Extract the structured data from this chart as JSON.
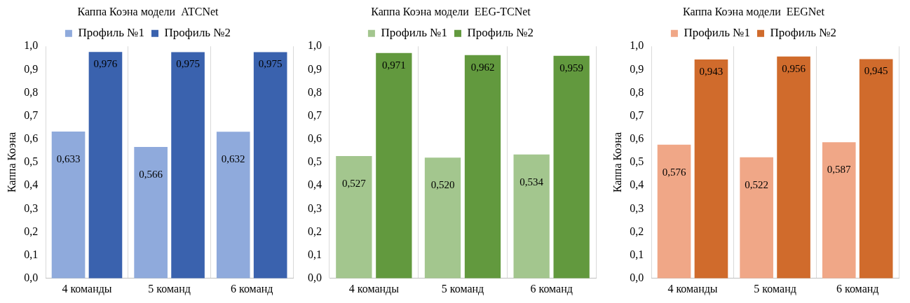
{
  "chart_data": [
    {
      "type": "bar",
      "title": "Каппа Коэна модели  ATCNet",
      "ylabel": "Каппа Коэна",
      "categories": [
        "4 команды",
        "5 команд",
        "6 команд"
      ],
      "series": [
        {
          "name": "Профиль №1",
          "color": "#8faadc",
          "values": [
            0.633,
            0.566,
            0.632
          ],
          "value_labels": [
            "0,633",
            "0,566",
            "0,632"
          ]
        },
        {
          "name": "Профиль №2",
          "color": "#3a62ae",
          "values": [
            0.976,
            0.975,
            0.975
          ],
          "value_labels": [
            "0,976",
            "0,975",
            "0,975"
          ]
        }
      ],
      "ylim": [
        0,
        1
      ],
      "yticks": [
        {
          "value": 0,
          "label": "0,0"
        },
        {
          "value": 0.1,
          "label": "0,1"
        },
        {
          "value": 0.2,
          "label": "0,2"
        },
        {
          "value": 0.3,
          "label": "0,3"
        },
        {
          "value": 0.4,
          "label": "0,4"
        },
        {
          "value": 0.5,
          "label": "0,5"
        },
        {
          "value": 0.6,
          "label": "0,6"
        },
        {
          "value": 0.7,
          "label": "0,7"
        },
        {
          "value": 0.8,
          "label": "0,8"
        },
        {
          "value": 0.9,
          "label": "0,9"
        },
        {
          "value": 1,
          "label": "1,0"
        }
      ],
      "grid": "x",
      "legend": "top"
    },
    {
      "type": "bar",
      "title": "Каппа Коэна модели  EEG-TCNet",
      "categories": [
        "4 команды",
        "5 команд",
        "6 команд"
      ],
      "series": [
        {
          "name": "Профиль №1",
          "color": "#a3c68e",
          "values": [
            0.527,
            0.52,
            0.534
          ],
          "value_labels": [
            "0,527",
            "0,520",
            "0,534"
          ]
        },
        {
          "name": "Профиль №2",
          "color": "#62993e",
          "values": [
            0.971,
            0.962,
            0.959
          ],
          "value_labels": [
            "0,971",
            "0,962",
            "0,959"
          ]
        }
      ],
      "ylim": [
        0,
        1
      ],
      "yticks": [
        {
          "value": 0,
          "label": "0,0"
        },
        {
          "value": 0.1,
          "label": "0,1"
        },
        {
          "value": 0.2,
          "label": "0,2"
        },
        {
          "value": 0.3,
          "label": "0,3"
        },
        {
          "value": 0.4,
          "label": "0,4"
        },
        {
          "value": 0.5,
          "label": "0,5"
        },
        {
          "value": 0.6,
          "label": "0,6"
        },
        {
          "value": 0.7,
          "label": "0,7"
        },
        {
          "value": 0.8,
          "label": "0,8"
        },
        {
          "value": 0.9,
          "label": "0,9"
        },
        {
          "value": 1,
          "label": "1,0"
        }
      ],
      "grid": "x",
      "legend": "top"
    },
    {
      "type": "bar",
      "title": "Каппа Коэна модели  EEGNet",
      "ylabel": "Каппа Коэна",
      "categories": [
        "4 команды",
        "5 команд",
        "6 команд"
      ],
      "series": [
        {
          "name": "Профиль №1",
          "color": "#f0a787",
          "values": [
            0.576,
            0.522,
            0.587
          ],
          "value_labels": [
            "0,576",
            "0,522",
            "0,587"
          ]
        },
        {
          "name": "Профиль №2",
          "color": "#d06b2c",
          "values": [
            0.943,
            0.956,
            0.945
          ],
          "value_labels": [
            "0,943",
            "0,956",
            "0,945"
          ]
        }
      ],
      "ylim": [
        0,
        1
      ],
      "yticks": [
        {
          "value": 0,
          "label": "0,0"
        },
        {
          "value": 0.1,
          "label": "0,1"
        },
        {
          "value": 0.2,
          "label": "0,2"
        },
        {
          "value": 0.3,
          "label": "0,3"
        },
        {
          "value": 0.4,
          "label": "0,4"
        },
        {
          "value": 0.5,
          "label": "0,5"
        },
        {
          "value": 0.6,
          "label": "0,6"
        },
        {
          "value": 0.7,
          "label": "0,7"
        },
        {
          "value": 0.8,
          "label": "0,8"
        },
        {
          "value": 0.9,
          "label": "0,9"
        },
        {
          "value": 1,
          "label": "1,0"
        }
      ],
      "grid": "x",
      "legend": "top"
    }
  ]
}
